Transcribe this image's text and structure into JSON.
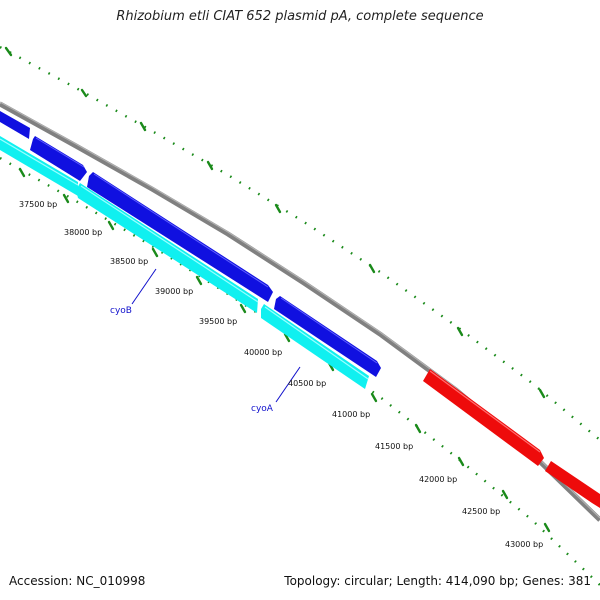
{
  "title": "Rhizobium etli CIAT 652 plasmid pA, complete sequence",
  "accession": "Accession: NC_010998",
  "summary": "Topology: circular; Length: 414,090 bp; Genes: 381",
  "colors": {
    "backbone": "#808080",
    "forward_cds": "#1010e0",
    "reverse_cds": "#10f0f0",
    "other_cds": "#ee0b0b",
    "tick": "#1a8a1a",
    "gene_label": "#1010cc"
  },
  "position_labels": [
    "37500 bp",
    "38000 bp",
    "38500 bp",
    "39000 bp",
    "39500 bp",
    "40000 bp",
    "40500 bp",
    "41000 bp",
    "41500 bp",
    "42000 bp",
    "42500 bp",
    "43000 bp"
  ],
  "gene_labels": [
    "cyoB",
    "cyoA"
  ]
}
